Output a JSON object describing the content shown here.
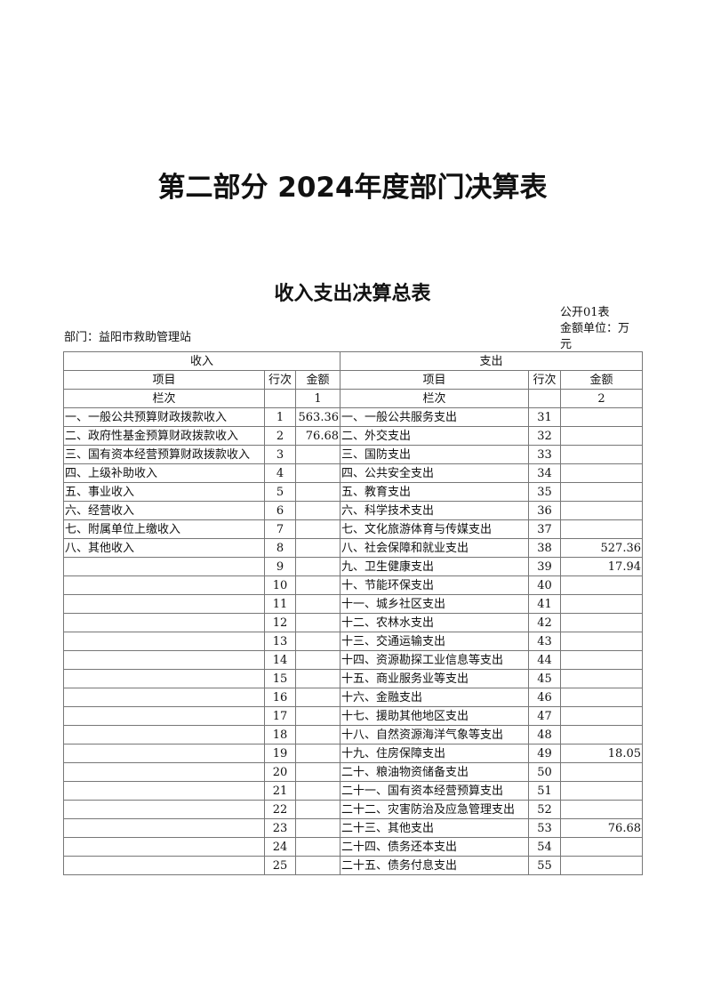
{
  "title": "第二部分 2024年度部门决算表",
  "subtitle": "收入支出决算总表",
  "table_code": "公开01表",
  "unit": "金额单位：万元",
  "department": "部门：益阳市救助管理站",
  "headers": {
    "income": "收入",
    "expense": "支出",
    "item": "项目",
    "line_no": "行次",
    "amount": "金额",
    "column_no": "栏次",
    "income_col": "1",
    "expense_col": "2"
  },
  "rows": [
    {
      "in_item": "一、一般公共预算财政拨款收入",
      "in_no": "1",
      "in_amt": "563.36",
      "ex_item": "一、一般公共服务支出",
      "ex_no": "31",
      "ex_amt": ""
    },
    {
      "in_item": "二、政府性基金预算财政拨款收入",
      "in_no": "2",
      "in_amt": "76.68",
      "ex_item": "二、外交支出",
      "ex_no": "32",
      "ex_amt": ""
    },
    {
      "in_item": "三、国有资本经营预算财政拨款收入",
      "in_no": "3",
      "in_amt": "",
      "ex_item": "三、国防支出",
      "ex_no": "33",
      "ex_amt": ""
    },
    {
      "in_item": "四、上级补助收入",
      "in_no": "4",
      "in_amt": "",
      "ex_item": "四、公共安全支出",
      "ex_no": "34",
      "ex_amt": ""
    },
    {
      "in_item": "五、事业收入",
      "in_no": "5",
      "in_amt": "",
      "ex_item": "五、教育支出",
      "ex_no": "35",
      "ex_amt": ""
    },
    {
      "in_item": "六、经营收入",
      "in_no": "6",
      "in_amt": "",
      "ex_item": "六、科学技术支出",
      "ex_no": "36",
      "ex_amt": ""
    },
    {
      "in_item": "七、附属单位上缴收入",
      "in_no": "7",
      "in_amt": "",
      "ex_item": "七、文化旅游体育与传媒支出",
      "ex_no": "37",
      "ex_amt": ""
    },
    {
      "in_item": "八、其他收入",
      "in_no": "8",
      "in_amt": "",
      "ex_item": "八、社会保障和就业支出",
      "ex_no": "38",
      "ex_amt": "527.36"
    },
    {
      "in_item": "",
      "in_no": "9",
      "in_amt": "",
      "ex_item": "九、卫生健康支出",
      "ex_no": "39",
      "ex_amt": "17.94"
    },
    {
      "in_item": "",
      "in_no": "10",
      "in_amt": "",
      "ex_item": "十、节能环保支出",
      "ex_no": "40",
      "ex_amt": ""
    },
    {
      "in_item": "",
      "in_no": "11",
      "in_amt": "",
      "ex_item": "十一、城乡社区支出",
      "ex_no": "41",
      "ex_amt": ""
    },
    {
      "in_item": "",
      "in_no": "12",
      "in_amt": "",
      "ex_item": "十二、农林水支出",
      "ex_no": "42",
      "ex_amt": ""
    },
    {
      "in_item": "",
      "in_no": "13",
      "in_amt": "",
      "ex_item": "十三、交通运输支出",
      "ex_no": "43",
      "ex_amt": ""
    },
    {
      "in_item": "",
      "in_no": "14",
      "in_amt": "",
      "ex_item": "十四、资源勘探工业信息等支出",
      "ex_no": "44",
      "ex_amt": ""
    },
    {
      "in_item": "",
      "in_no": "15",
      "in_amt": "",
      "ex_item": "十五、商业服务业等支出",
      "ex_no": "45",
      "ex_amt": ""
    },
    {
      "in_item": "",
      "in_no": "16",
      "in_amt": "",
      "ex_item": "十六、金融支出",
      "ex_no": "46",
      "ex_amt": ""
    },
    {
      "in_item": "",
      "in_no": "17",
      "in_amt": "",
      "ex_item": "十七、援助其他地区支出",
      "ex_no": "47",
      "ex_amt": ""
    },
    {
      "in_item": "",
      "in_no": "18",
      "in_amt": "",
      "ex_item": "十八、自然资源海洋气象等支出",
      "ex_no": "48",
      "ex_amt": ""
    },
    {
      "in_item": "",
      "in_no": "19",
      "in_amt": "",
      "ex_item": "十九、住房保障支出",
      "ex_no": "49",
      "ex_amt": "18.05"
    },
    {
      "in_item": "",
      "in_no": "20",
      "in_amt": "",
      "ex_item": "二十、粮油物资储备支出",
      "ex_no": "50",
      "ex_amt": ""
    },
    {
      "in_item": "",
      "in_no": "21",
      "in_amt": "",
      "ex_item": "二十一、国有资本经营预算支出",
      "ex_no": "51",
      "ex_amt": ""
    },
    {
      "in_item": "",
      "in_no": "22",
      "in_amt": "",
      "ex_item": "二十二、灾害防治及应急管理支出",
      "ex_no": "52",
      "ex_amt": ""
    },
    {
      "in_item": "",
      "in_no": "23",
      "in_amt": "",
      "ex_item": "二十三、其他支出",
      "ex_no": "53",
      "ex_amt": "76.68"
    },
    {
      "in_item": "",
      "in_no": "24",
      "in_amt": "",
      "ex_item": "二十四、债务还本支出",
      "ex_no": "54",
      "ex_amt": ""
    },
    {
      "in_item": "",
      "in_no": "25",
      "in_amt": "",
      "ex_item": "二十五、债务付息支出",
      "ex_no": "55",
      "ex_amt": ""
    }
  ]
}
